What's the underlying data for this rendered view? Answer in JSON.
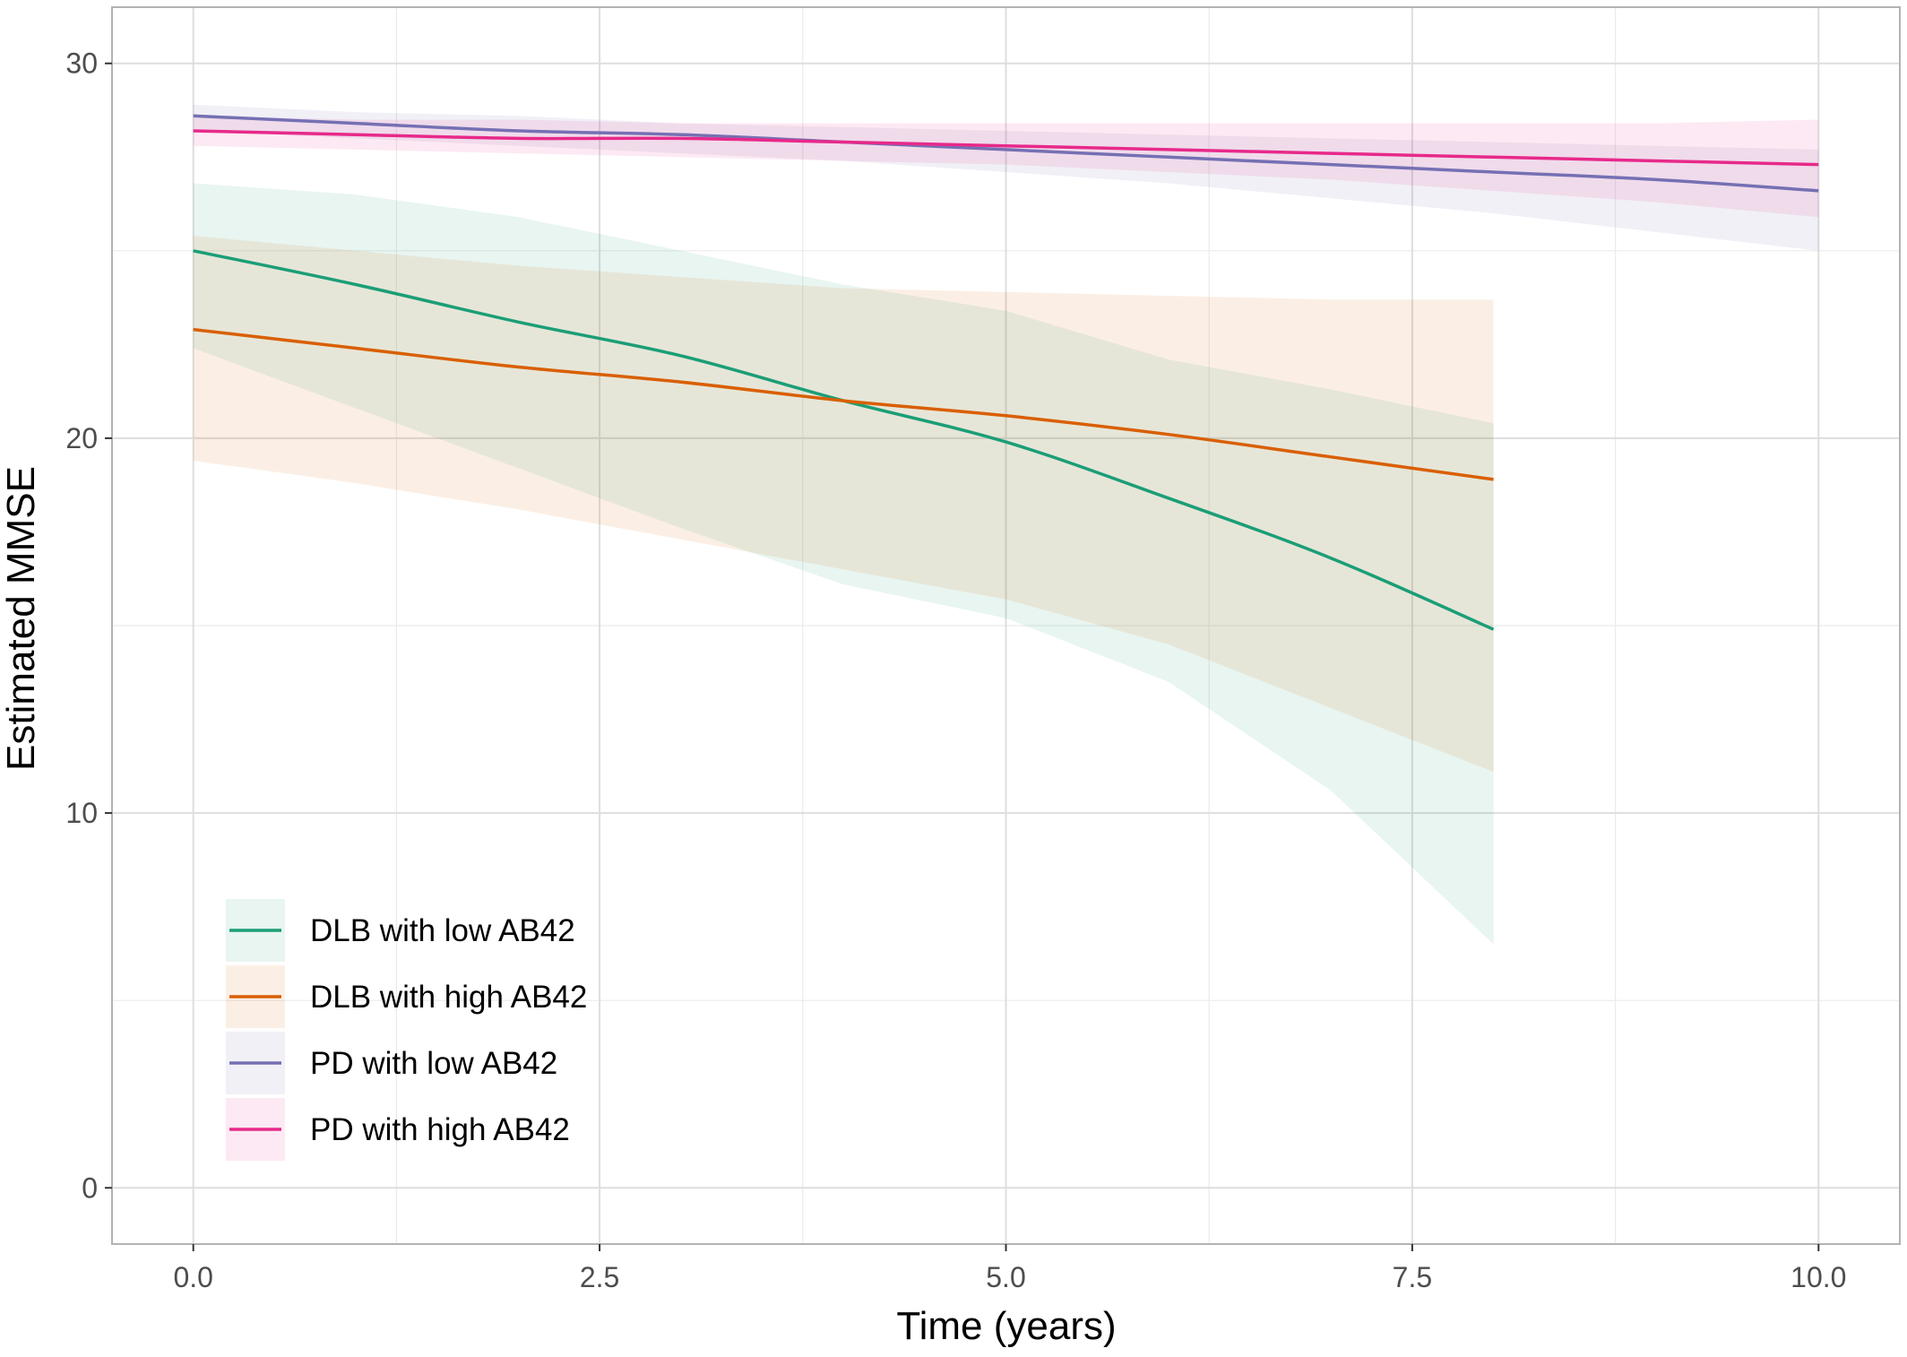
{
  "chart_data": {
    "type": "line",
    "title": "",
    "xlabel": "Time (years)",
    "ylabel": "Estimated MMSE",
    "xlim": [
      -0.5,
      10.5
    ],
    "ylim": [
      -1.5,
      31.5
    ],
    "x_ticks": [
      0.0,
      2.5,
      5.0,
      7.5,
      10.0
    ],
    "x_tick_labels": [
      "0.0",
      "2.5",
      "5.0",
      "7.5",
      "10.0"
    ],
    "y_ticks": [
      0,
      10,
      20,
      30
    ],
    "y_tick_labels": [
      "0",
      "10",
      "20",
      "30"
    ],
    "grid": true,
    "legend_position": "bottom-left",
    "series": [
      {
        "name": "DLB with low AB42",
        "color": "#1b9e77",
        "x": [
          0,
          1,
          2,
          3,
          4,
          5,
          6,
          7,
          8
        ],
        "y": [
          25.0,
          24.1,
          23.1,
          22.2,
          21.0,
          19.9,
          18.4,
          16.8,
          14.9
        ],
        "lower": [
          22.4,
          20.8,
          19.2,
          17.6,
          16.1,
          15.2,
          13.5,
          10.6,
          6.5
        ],
        "upper": [
          26.8,
          26.5,
          25.9,
          25.0,
          24.1,
          23.4,
          22.1,
          21.3,
          20.4
        ]
      },
      {
        "name": "DLB with high AB42",
        "color": "#d95f02",
        "x": [
          0,
          1,
          2,
          3,
          4,
          5,
          6,
          7,
          8
        ],
        "y": [
          22.9,
          22.4,
          21.9,
          21.5,
          21.0,
          20.6,
          20.1,
          19.5,
          18.9
        ],
        "lower": [
          19.4,
          18.8,
          18.1,
          17.3,
          16.5,
          15.7,
          14.5,
          12.8,
          11.1
        ],
        "upper": [
          25.4,
          25.0,
          24.6,
          24.3,
          24.0,
          23.9,
          23.8,
          23.7,
          23.7
        ]
      },
      {
        "name": "PD with low AB42",
        "color": "#7570b3",
        "x": [
          0,
          1,
          2,
          3,
          4,
          5,
          6,
          7,
          8,
          9,
          10
        ],
        "y": [
          28.6,
          28.4,
          28.2,
          28.1,
          27.9,
          27.7,
          27.5,
          27.3,
          27.1,
          26.9,
          26.6
        ],
        "lower": [
          28.2,
          28.0,
          27.8,
          27.6,
          27.4,
          27.1,
          26.8,
          26.4,
          26.0,
          25.5,
          25.0
        ],
        "upper": [
          28.9,
          28.7,
          28.6,
          28.4,
          28.3,
          28.2,
          28.1,
          28.0,
          27.9,
          27.8,
          27.7
        ]
      },
      {
        "name": "PD with high AB42",
        "color": "#e7298a",
        "x": [
          0,
          1,
          2,
          3,
          4,
          5,
          6,
          7,
          8,
          9,
          10
        ],
        "y": [
          28.2,
          28.1,
          28.0,
          28.0,
          27.9,
          27.8,
          27.7,
          27.6,
          27.5,
          27.4,
          27.3
        ],
        "lower": [
          27.8,
          27.7,
          27.6,
          27.5,
          27.4,
          27.3,
          27.1,
          26.9,
          26.6,
          26.3,
          25.9
        ],
        "upper": [
          28.6,
          28.5,
          28.5,
          28.4,
          28.4,
          28.4,
          28.4,
          28.4,
          28.4,
          28.4,
          28.5
        ]
      }
    ]
  }
}
